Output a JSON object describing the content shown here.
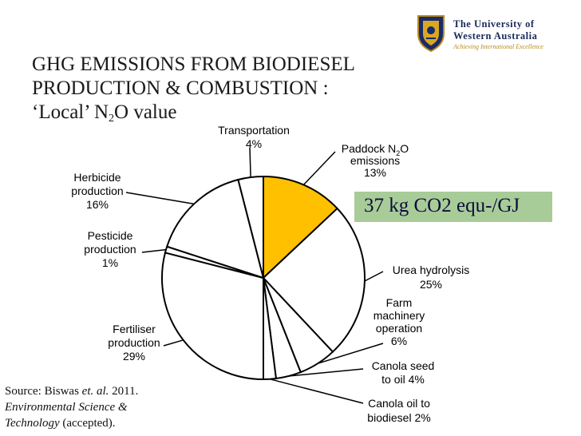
{
  "logo": {
    "line1": "The University of",
    "line2": "Western Australia",
    "motto": "Achieving International Excellence"
  },
  "title": {
    "line1": "GHG EMISSIONS FROM BIODIESEL",
    "line2": "PRODUCTION & COMBUSTION :",
    "line3_pre": "‘Local’  N",
    "line3_sub": "2",
    "line3_post": "O value"
  },
  "callout": {
    "text": "37 kg CO2 equ-/GJ",
    "color": "#a8cc98"
  },
  "source": {
    "line1_pre": "Source:    Biswas ",
    "line1_italic": "et. al.",
    "line1_post": " 2011.",
    "line2": "Environmental Science &",
    "line3_italic": "Technology",
    "line3_post": " (accepted)."
  },
  "chart_data": {
    "type": "pie",
    "title": "",
    "start": "12 o'clock, clockwise",
    "highlight_color": "#ffc000",
    "slices": [
      {
        "name": "Paddock N2O emissions",
        "label_lines": [
          "Paddock N|2|O",
          "emissions",
          "13%"
        ],
        "value": 13,
        "highlight": true
      },
      {
        "name": "Urea hydrolysis",
        "label_lines": [
          "Urea hydrolysis",
          "25%"
        ],
        "value": 25
      },
      {
        "name": "Farm machinery operation",
        "label_lines": [
          "Farm",
          "machinery",
          "operation",
          "6%"
        ],
        "value": 6
      },
      {
        "name": "Canola seed to oil",
        "label_lines": [
          "Canola seed",
          "to oil 4%"
        ],
        "value": 4
      },
      {
        "name": "Canola oil to biodiesel",
        "label_lines": [
          "Canola oil to",
          "biodiesel 2%"
        ],
        "value": 2
      },
      {
        "name": "Fertiliser production",
        "label_lines": [
          "Fertiliser",
          "production",
          "29%"
        ],
        "value": 29
      },
      {
        "name": "Pesticide production",
        "label_lines": [
          "Pesticide",
          "production",
          "1%"
        ],
        "value": 1
      },
      {
        "name": "Herbicide production",
        "label_lines": [
          "Herbicide",
          "production",
          "16%"
        ],
        "value": 16
      },
      {
        "name": "Transportation",
        "label_lines": [
          "Transportation",
          "4%"
        ],
        "value": 4
      }
    ]
  }
}
